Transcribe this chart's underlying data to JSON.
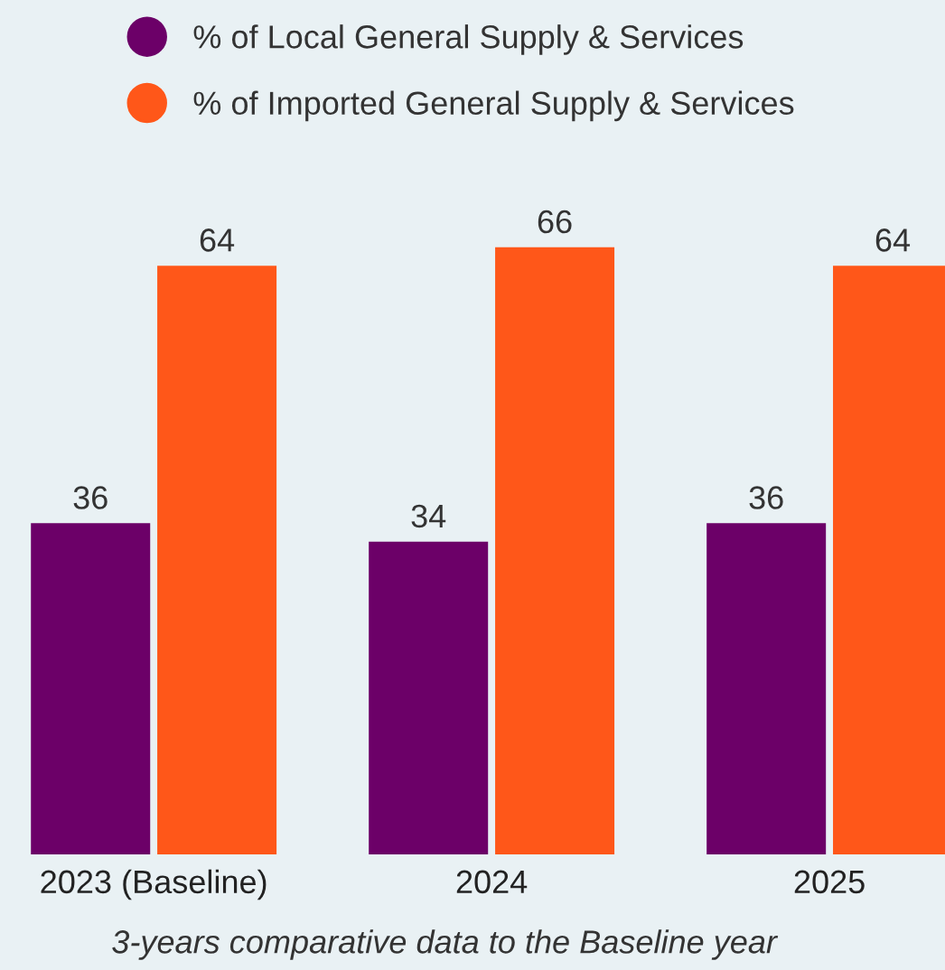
{
  "chart_data": {
    "type": "bar",
    "categories": [
      "2023 (Baseline)",
      "2024",
      "2025"
    ],
    "series": [
      {
        "name": "% of Local General Supply & Services",
        "color": "#6c0068",
        "values": [
          36,
          34,
          36
        ]
      },
      {
        "name": "% of Imported General Supply & Services",
        "color": "#ff5719",
        "values": [
          64,
          66,
          64
        ]
      }
    ],
    "data_labels": true,
    "legend": "top left",
    "grid": false,
    "marker": "circle",
    "annotations": [
      "3-years comparative data to the Baseline year"
    ]
  }
}
